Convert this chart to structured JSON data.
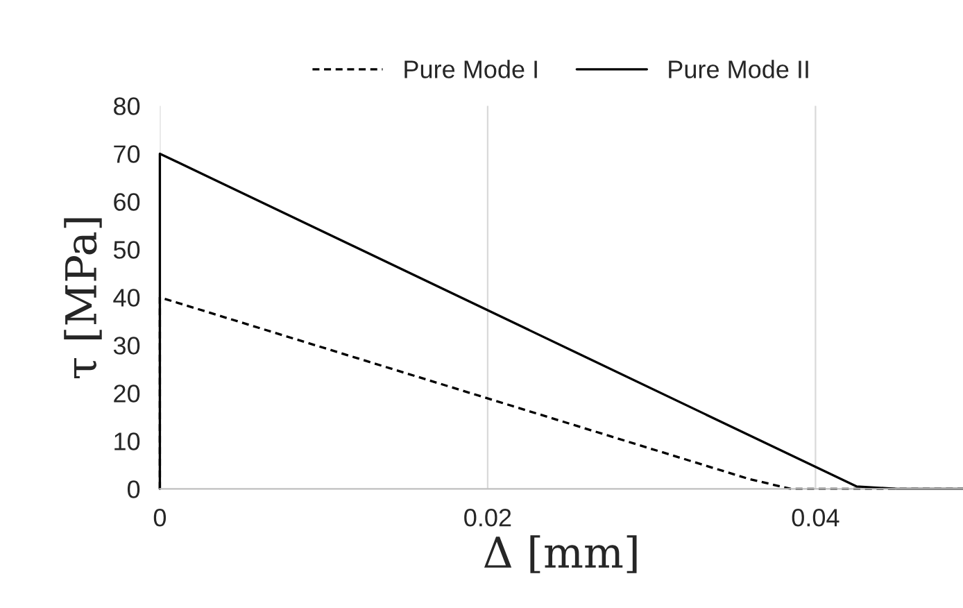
{
  "chart_data": {
    "type": "line",
    "xlabel": "Δ [mm]",
    "ylabel": "τ [MPa]",
    "xlim": [
      0,
      0.049
    ],
    "xticks": [
      0,
      0.02,
      0.04
    ],
    "ylim": [
      0,
      80
    ],
    "yticks": [
      0,
      10,
      20,
      30,
      40,
      50,
      60,
      70,
      80
    ],
    "grid": "x",
    "legend": "top",
    "series": [
      {
        "name": "Pure Mode I",
        "color": "#000000",
        "line_style": "dashed",
        "x": [
          0,
          0,
          0.036,
          0.0385,
          0.049
        ],
        "values": [
          0,
          40,
          2,
          0,
          0
        ]
      },
      {
        "name": "Pure Mode II",
        "color": "#000000",
        "line_style": "solid",
        "x": [
          0,
          0,
          0.0425,
          0.045,
          0.049
        ],
        "values": [
          0,
          70,
          0.5,
          0,
          0
        ]
      }
    ]
  }
}
